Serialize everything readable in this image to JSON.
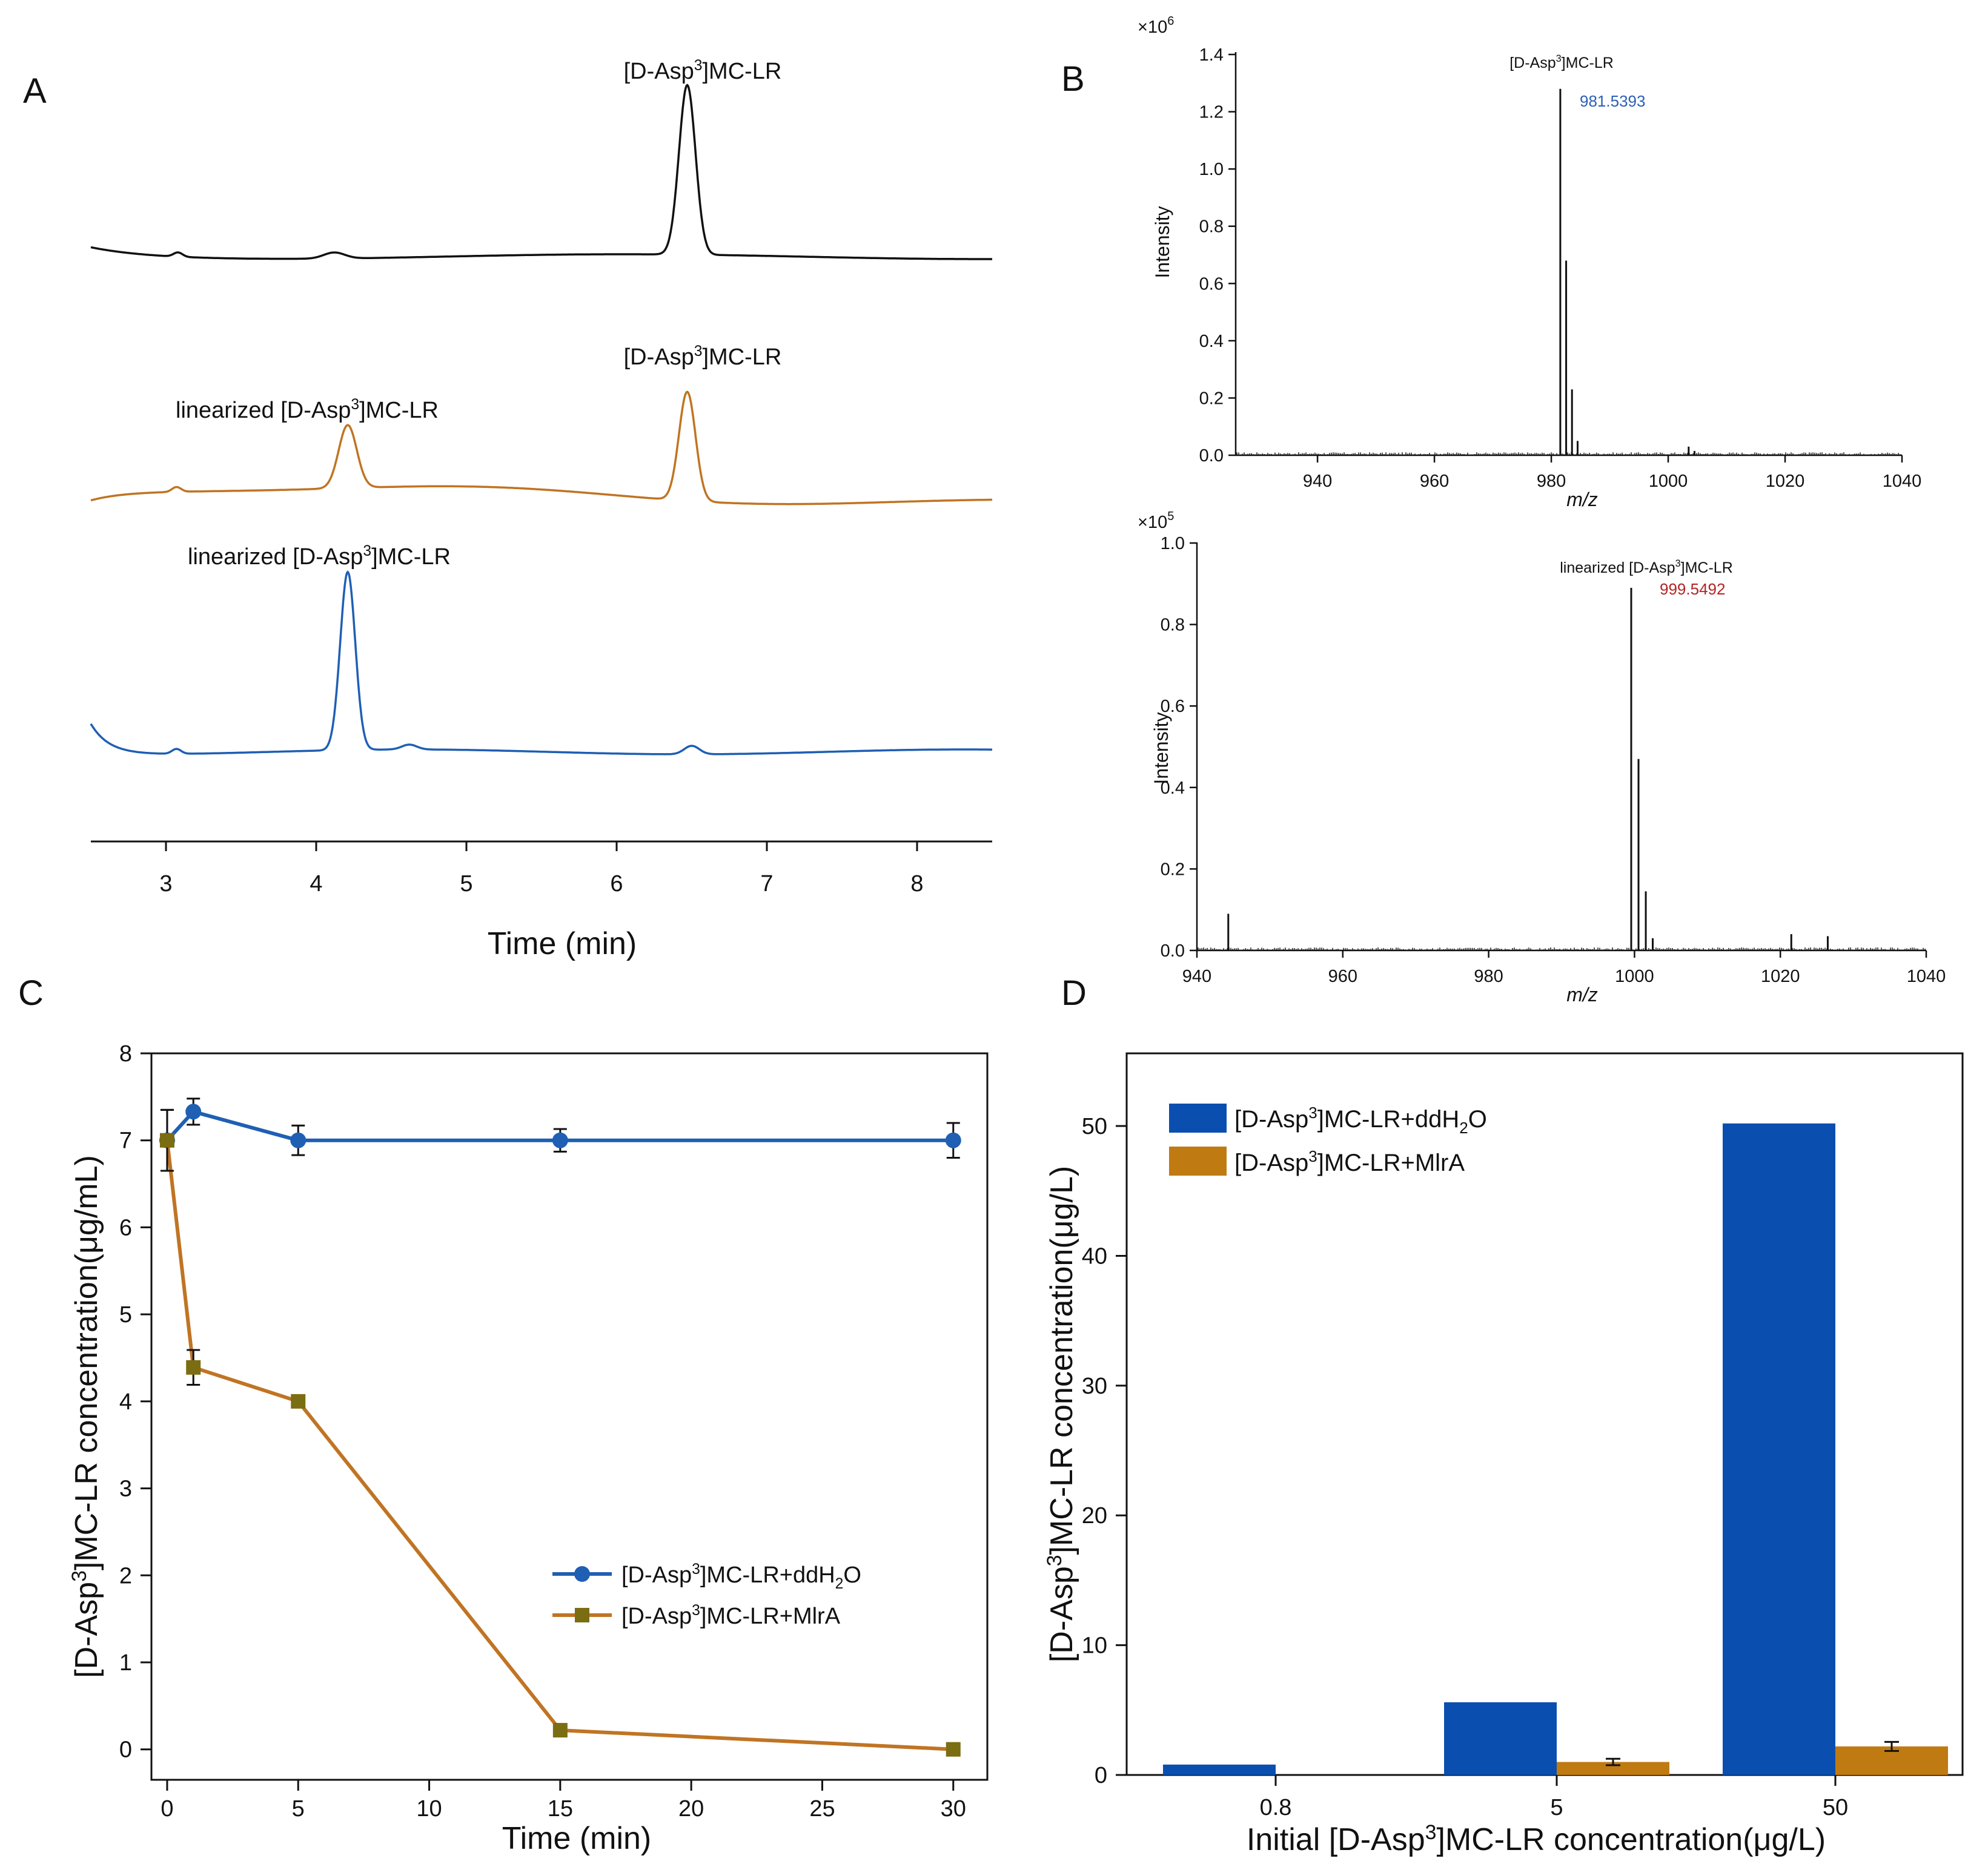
{
  "panel_labels": {
    "a": "A",
    "b": "B",
    "c": "C",
    "d": "D"
  },
  "colors": {
    "black": "#111111",
    "orange": "#c07423",
    "blue": "#1f5fb4",
    "bar_blue": "#0a4fb0",
    "bar_orange": "#c07a12",
    "marker_olive": "#7b6d12",
    "mass_blue": "#2a5fb8",
    "mass_red": "#b42323"
  },
  "chart_data": [
    {
      "id": "A",
      "type": "line",
      "title": "",
      "xlabel": "Time (min)",
      "xlim": [
        2.5,
        8.5
      ],
      "xticks": [
        "3",
        "4",
        "5",
        "6",
        "7",
        "8"
      ],
      "series": [
        {
          "name": "trace_standard",
          "color": "black",
          "peaks": [
            {
              "time": 6.47,
              "label_parts": [
                "[D-Asp",
                "3",
                "]MC-LR"
              ]
            }
          ]
        },
        {
          "name": "trace_partial",
          "color": "orange",
          "peaks": [
            {
              "time": 4.21,
              "label_parts": [
                "linearized [D-Asp",
                "3",
                "]MC-LR"
              ]
            },
            {
              "time": 6.47,
              "label_parts": [
                "[D-Asp",
                "3",
                "]MC-LR"
              ]
            }
          ]
        },
        {
          "name": "trace_complete",
          "color": "blue",
          "peaks": [
            {
              "time": 4.21,
              "label_parts": [
                "linearized [D-Asp",
                "3",
                "]MC-LR"
              ]
            }
          ]
        }
      ]
    },
    {
      "id": "B1",
      "type": "bar",
      "title": "",
      "xlabel": "m/z",
      "ylabel": "Intensity",
      "multiplier": {
        "base": "×10",
        "exp": "6"
      },
      "xlim": [
        926,
        1040
      ],
      "ylim": [
        0,
        1.4
      ],
      "xticks": [
        "940",
        "960",
        "980",
        "1000",
        "1020",
        "1040"
      ],
      "yticks": [
        "0.0",
        "0.2",
        "0.4",
        "0.6",
        "0.8",
        "1.0",
        "1.2",
        "1.4"
      ],
      "annotation_parts": [
        "[D-Asp",
        "3",
        "]MC-LR"
      ],
      "peak_label": "981.5393",
      "peaks": [
        {
          "x": 981.54,
          "y": 1.28
        },
        {
          "x": 982.54,
          "y": 0.68
        },
        {
          "x": 983.54,
          "y": 0.23
        },
        {
          "x": 984.5,
          "y": 0.05
        },
        {
          "x": 1003.5,
          "y": 0.03
        },
        {
          "x": 1004.5,
          "y": 0.015
        }
      ]
    },
    {
      "id": "B2",
      "type": "bar",
      "title": "",
      "xlabel": "m/z",
      "ylabel": "Intensity",
      "multiplier": {
        "base": "×10",
        "exp": "5"
      },
      "xlim": [
        940,
        1040
      ],
      "ylim": [
        0,
        1.0
      ],
      "xticks": [
        "940",
        "960",
        "980",
        "1000",
        "1020",
        "1040"
      ],
      "yticks": [
        "0.0",
        "0.2",
        "0.4",
        "0.6",
        "0.8",
        "1.0"
      ],
      "annotation_parts": [
        "linearized [D-Asp",
        "3",
        "]MC-LR"
      ],
      "peak_label": "999.5492",
      "peaks": [
        {
          "x": 944.3,
          "y": 0.09
        },
        {
          "x": 999.55,
          "y": 0.89
        },
        {
          "x": 1000.55,
          "y": 0.47
        },
        {
          "x": 1001.55,
          "y": 0.145
        },
        {
          "x": 1002.5,
          "y": 0.03
        },
        {
          "x": 1021.5,
          "y": 0.04
        },
        {
          "x": 1026.5,
          "y": 0.035
        }
      ]
    },
    {
      "id": "C",
      "type": "line",
      "title": "",
      "xlabel": "Time (min)",
      "ylabel": "[D-Asp3]MC-LR concentration(μg/mL)",
      "ylabel_parts": [
        "[D-Asp",
        "3",
        "]MC-LR concentration(μg/mL)"
      ],
      "xlim": [
        -0.6,
        31.3
      ],
      "ylim": [
        -0.35,
        8
      ],
      "xticks": [
        0,
        5,
        10,
        15,
        20,
        25,
        30
      ],
      "yticks": [
        0,
        1,
        2,
        3,
        4,
        5,
        6,
        7,
        8
      ],
      "legend_position": "center-right",
      "series": [
        {
          "name": "[D-Asp3]MC-LR+ddH2O",
          "legend_parts": [
            "[D-Asp",
            "3",
            "]MC-LR+ddH",
            "2",
            "O"
          ],
          "color": "blue",
          "marker": "circle",
          "x": [
            0,
            1,
            5,
            15,
            30
          ],
          "y": [
            7.0,
            7.33,
            7.0,
            7.0,
            7.0
          ],
          "error": [
            0.35,
            0.15,
            0.17,
            0.13,
            0.2
          ]
        },
        {
          "name": "[D-Asp3]MC-LR+MlrA",
          "legend_parts": [
            "[D-Asp",
            "3",
            "]MC-LR+MlrA"
          ],
          "color": "orange",
          "marker": "square",
          "x": [
            0,
            1,
            5,
            15,
            30
          ],
          "y": [
            7.0,
            4.39,
            4.0,
            0.22,
            0.0
          ],
          "error": [
            0.35,
            0.2,
            0.07,
            0.06,
            0.05
          ]
        }
      ]
    },
    {
      "id": "D",
      "type": "bar",
      "title": "",
      "xlabel": "Initial [D-Asp3]MC-LR concentration(μg/L)",
      "xlabel_parts": [
        "Initial [D-Asp",
        "3",
        "]MC-LR concentration(μg/L)"
      ],
      "ylabel": "[D-Asp3]MC-LR concentration(μg/L)",
      "ylabel_parts": [
        "[D-Asp",
        "3",
        "]MC-LR concentration(μg/L)"
      ],
      "categories": [
        "0.8",
        "5",
        "50"
      ],
      "ylim": [
        0,
        55.6
      ],
      "yticks": [
        0,
        10,
        20,
        30,
        40,
        50
      ],
      "legend_position": "top-left",
      "series": [
        {
          "name": "[D-Asp3]MC-LR+ddH2O",
          "legend_parts": [
            "[D-Asp",
            "3",
            "]MC-LR+ddH",
            "2",
            "O"
          ],
          "color": "bar_blue",
          "values": [
            0.8,
            5.6,
            50.2
          ],
          "error": [
            null,
            null,
            null
          ]
        },
        {
          "name": "[D-Asp3]MC-LR+MlrA",
          "legend_parts": [
            "[D-Asp",
            "3",
            "]MC-LR+MlrA"
          ],
          "color": "bar_orange",
          "values": [
            0.0,
            1.0,
            2.2
          ],
          "error": [
            null,
            0.25,
            0.35
          ]
        }
      ]
    }
  ]
}
